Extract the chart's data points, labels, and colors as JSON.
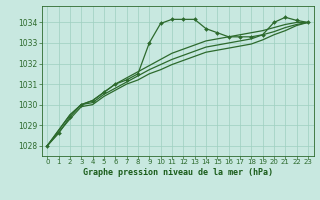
{
  "title": "Graphe pression niveau de la mer (hPa)",
  "bg_color": "#c8e8e0",
  "plot_bg_color": "#c8e8e0",
  "line_color": "#2d6a2d",
  "grid_color": "#9ecfbf",
  "ylim": [
    1027.5,
    1034.8
  ],
  "yticks": [
    1028,
    1029,
    1030,
    1031,
    1032,
    1033,
    1034
  ],
  "xlim": [
    -0.5,
    23.5
  ],
  "xticks": [
    0,
    1,
    2,
    3,
    4,
    5,
    6,
    7,
    8,
    9,
    10,
    11,
    12,
    13,
    14,
    15,
    16,
    17,
    18,
    19,
    20,
    21,
    22,
    23
  ],
  "xlabel_color": "#1a5c1a",
  "series1_x": [
    0,
    1,
    2,
    3,
    4,
    5,
    6,
    7,
    8,
    9,
    10,
    11,
    12,
    13,
    14,
    15,
    16,
    17,
    18,
    19,
    20,
    21,
    22,
    23
  ],
  "series1_y": [
    1028.0,
    1028.6,
    1029.4,
    1030.0,
    1030.2,
    1030.6,
    1031.0,
    1031.2,
    1031.5,
    1033.0,
    1033.95,
    1034.15,
    1034.15,
    1034.15,
    1033.7,
    1033.5,
    1033.3,
    1033.3,
    1033.3,
    1033.4,
    1034.0,
    1034.25,
    1034.1,
    1034.0
  ],
  "series2_x": [
    0,
    2,
    3,
    4,
    5,
    6,
    7,
    8,
    9,
    10,
    11,
    12,
    13,
    14,
    15,
    16,
    17,
    18,
    19,
    20,
    21,
    22,
    23
  ],
  "series2_y": [
    1028.0,
    1029.5,
    1030.0,
    1030.2,
    1030.6,
    1031.0,
    1031.3,
    1031.6,
    1031.9,
    1032.2,
    1032.5,
    1032.7,
    1032.9,
    1033.1,
    1033.2,
    1033.3,
    1033.4,
    1033.5,
    1033.6,
    1033.75,
    1033.9,
    1034.0,
    1034.0
  ],
  "series3_x": [
    0,
    2,
    3,
    4,
    5,
    6,
    7,
    8,
    9,
    10,
    11,
    12,
    13,
    14,
    15,
    16,
    17,
    18,
    19,
    20,
    21,
    22,
    23
  ],
  "series3_y": [
    1028.0,
    1029.5,
    1030.0,
    1030.1,
    1030.5,
    1030.8,
    1031.1,
    1031.4,
    1031.7,
    1031.95,
    1032.2,
    1032.4,
    1032.6,
    1032.8,
    1032.9,
    1033.0,
    1033.1,
    1033.2,
    1033.4,
    1033.55,
    1033.75,
    1033.9,
    1034.0
  ],
  "series4_x": [
    0,
    2,
    3,
    4,
    5,
    6,
    7,
    8,
    9,
    10,
    11,
    12,
    13,
    14,
    15,
    16,
    17,
    18,
    19,
    20,
    21,
    22,
    23
  ],
  "series4_y": [
    1028.0,
    1029.3,
    1029.9,
    1030.0,
    1030.4,
    1030.7,
    1031.0,
    1031.2,
    1031.5,
    1031.7,
    1031.95,
    1032.15,
    1032.35,
    1032.55,
    1032.65,
    1032.75,
    1032.85,
    1032.95,
    1033.15,
    1033.4,
    1033.6,
    1033.85,
    1034.0
  ]
}
